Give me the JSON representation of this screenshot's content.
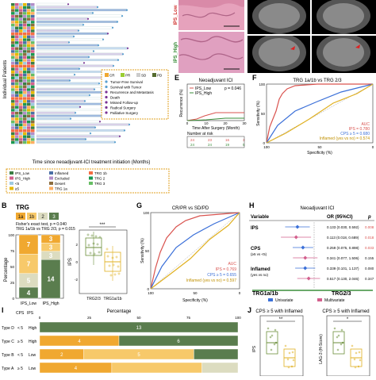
{
  "panels": {
    "a": {
      "ylabel": "Individual Patients",
      "xlabel": "Time since neoadjuvant-ICI treatment initiation (Months)",
      "legend_status": [
        "CR",
        "PR",
        "SD",
        "PD"
      ],
      "legend_status_colors": [
        "#f0a830",
        "#9acd32",
        "#cccccc",
        "#556b2f"
      ],
      "legend_events": [
        "Tumor-Free Survival",
        "Survival with Tumor",
        "Recurrence and Metastasis",
        "Death",
        "Missed Follow-up",
        "Radical Surgery",
        "Palliative Surgery"
      ],
      "bar_colors": [
        "#ffffff",
        "#d8d0e8",
        "#9fb9de",
        "#c6dbef"
      ],
      "bottom_legend": [
        "IPS_Low",
        "IPS_High",
        "<5",
        "≥5",
        "Inflamed",
        "Excluded",
        "Desert",
        "TRG 1a",
        "TRG 1b",
        "TRG 2",
        "TRG 3"
      ],
      "heat_colors": [
        "#3a7d44",
        "#d35f8d",
        "#9ecae1",
        "#e6b800",
        "#4a6fa5",
        "#b28dc8",
        "#8c6d3f",
        "#fdae61",
        "#f46d43",
        "#1a9850",
        "#66bd63"
      ]
    },
    "images": {
      "ips_low": "IPS_Low",
      "ips_high": "IPS_High"
    },
    "b": {
      "legend_title": "TRG",
      "legend_items": [
        "1a",
        "1b",
        "2",
        "3"
      ],
      "legend_colors": [
        "#f0a830",
        "#f7c96a",
        "#dcdcc0",
        "#5a7d4e"
      ],
      "stat1": "Fisher's exact test, p = 0.040",
      "stat2": "TRG 1a/1b vs TRG 2/3, p = 0.015",
      "ylabel": "Percentage",
      "categories": [
        "IPS_Low",
        "IPS_High"
      ],
      "ticks": [
        "0",
        "25",
        "50",
        "75",
        "100"
      ],
      "segments_low": [
        7,
        7,
        5,
        4
      ],
      "segments_high": [
        3,
        3,
        3,
        14
      ],
      "labels_low": [
        "7",
        "7",
        "5",
        "4"
      ],
      "labels_high": [
        "3",
        "3",
        "3",
        "14"
      ]
    },
    "b2": {
      "ylabel": "IPS",
      "categories": [
        "TRG2/3",
        "TRG1a/1b"
      ],
      "sig": "***",
      "ticks": [
        "2",
        "0",
        "-2"
      ]
    },
    "e": {
      "title": "Neoadjuvant ICI",
      "legend": [
        "IPS_Low",
        "IPS_High"
      ],
      "p": "p = 0.046",
      "ylabel": "Recurrence (%)",
      "xlabel": "Time After Surgery (Month)",
      "xticks": [
        "0",
        "10",
        "20",
        "30"
      ],
      "risk_title": "Number at risk",
      "risk_low": [
        "24",
        "23",
        "16",
        "3"
      ],
      "risk_high": [
        "24",
        "24",
        "19",
        "5"
      ]
    },
    "f": {
      "title": "TRG 1a/1b vs TRG 2/3",
      "auc_label": "AUC",
      "auc1": "IPS = 0.780",
      "auc2": "CPS ≥ 5 = 0.680",
      "auc3": "Inflamed (yes vs no) = 0.574",
      "xlabel": "Specificity (%)",
      "ylabel": "Sensitivity (%)",
      "xticks": [
        "100",
        "50",
        "0"
      ],
      "yticks": [
        "0",
        "50",
        "100"
      ]
    },
    "g": {
      "title": "CR/PR vs SD/PD",
      "auc_label": "AUC",
      "auc1": "IPS = 0.769",
      "auc2": "CPS ≥ 5 = 0.655",
      "auc3": "Inflamed (yes vs no) = 0.597",
      "xlabel": "Specificity (%)",
      "ylabel": "Sensitivity (%)",
      "xticks": [
        "100",
        "50",
        "0"
      ],
      "yticks": [
        "0",
        "50",
        "100"
      ]
    },
    "h": {
      "title": "Neoadjuvant ICI",
      "col_variable": "Variable",
      "col_or": "OR (95%CI)",
      "col_p": "p",
      "rows": [
        {
          "var": "IPS",
          "sub": "",
          "or": "0.133 (0.030, 0.592)",
          "p": "0.008",
          "uni": 0.133,
          "lo": 0.03,
          "hi": 0.592
        },
        {
          "var": "",
          "sub": "",
          "or": "0.113 (0.018, 0.689)",
          "p": "0.018",
          "uni": 0.113,
          "lo": 0.018,
          "hi": 0.689
        },
        {
          "var": "CPS",
          "sub": "(≥5 vs <5)",
          "or": "0.259 (0.075, 0.898)",
          "p": "0.033",
          "uni": 0.259,
          "lo": 0.075,
          "hi": 0.898
        },
        {
          "var": "",
          "sub": "",
          "or": "0.341 (0.077, 1.506)",
          "p": "0.155",
          "uni": 0.341,
          "lo": 0.077,
          "hi": 1.506
        },
        {
          "var": "Inflamed",
          "sub": "(yes vs no)",
          "or": "0.339 (0.101, 1.137)",
          "p": "0.080",
          "uni": 0.339,
          "lo": 0.101,
          "hi": 1.137
        },
        {
          "var": "",
          "sub": "",
          "or": "0.517 (0.130, 2.046)",
          "p": "0.347",
          "uni": 0.517,
          "lo": 0.13,
          "hi": 2.046
        }
      ],
      "left_label": "TRG1a/1b",
      "right_label": "TRG2/3",
      "legend": [
        "Univariate",
        "Multivariate"
      ]
    },
    "i": {
      "title": "Percentage",
      "ticks": [
        "0",
        "25",
        "50",
        "75",
        "100"
      ],
      "col_cps": "CPS",
      "col_ips": "IPS",
      "rows": [
        {
          "type": "Type D",
          "cps": "< 5",
          "ips": "High",
          "vals": [
            0,
            0,
            0,
            13
          ],
          "labels": [
            "",
            "",
            "",
            "13"
          ]
        },
        {
          "type": "Type C",
          "cps": "≥ 5",
          "ips": "High",
          "vals": [
            4,
            0,
            0,
            6
          ],
          "labels": [
            "4",
            "",
            "",
            "6"
          ]
        },
        {
          "type": "Type B",
          "cps": "< 5",
          "ips": "Low",
          "vals": [
            2,
            5,
            0,
            2
          ],
          "labels": [
            "2",
            "5",
            "",
            ""
          ]
        },
        {
          "type": "Type A",
          "cps": "≥ 5",
          "ips": "Low",
          "vals": [
            4,
            5,
            2,
            0
          ],
          "labels": [
            "4",
            "",
            "",
            ""
          ]
        }
      ],
      "colors": [
        "#f0a830",
        "#f7c96a",
        "#dcdcc0",
        "#5a7d4e"
      ]
    },
    "j": {
      "title1": "CPS ≥ 5 with Inflamed",
      "title2": "CPS ≥ 5 with Inflamed",
      "sig1": "**",
      "sig2": "*",
      "ylabel1": "IPS",
      "ylabel2": "LAG-3 (H-Score)"
    }
  },
  "letters": {
    "b": "B",
    "e": "E",
    "f": "F",
    "g": "G",
    "h": "H",
    "i": "I",
    "j": "J"
  }
}
